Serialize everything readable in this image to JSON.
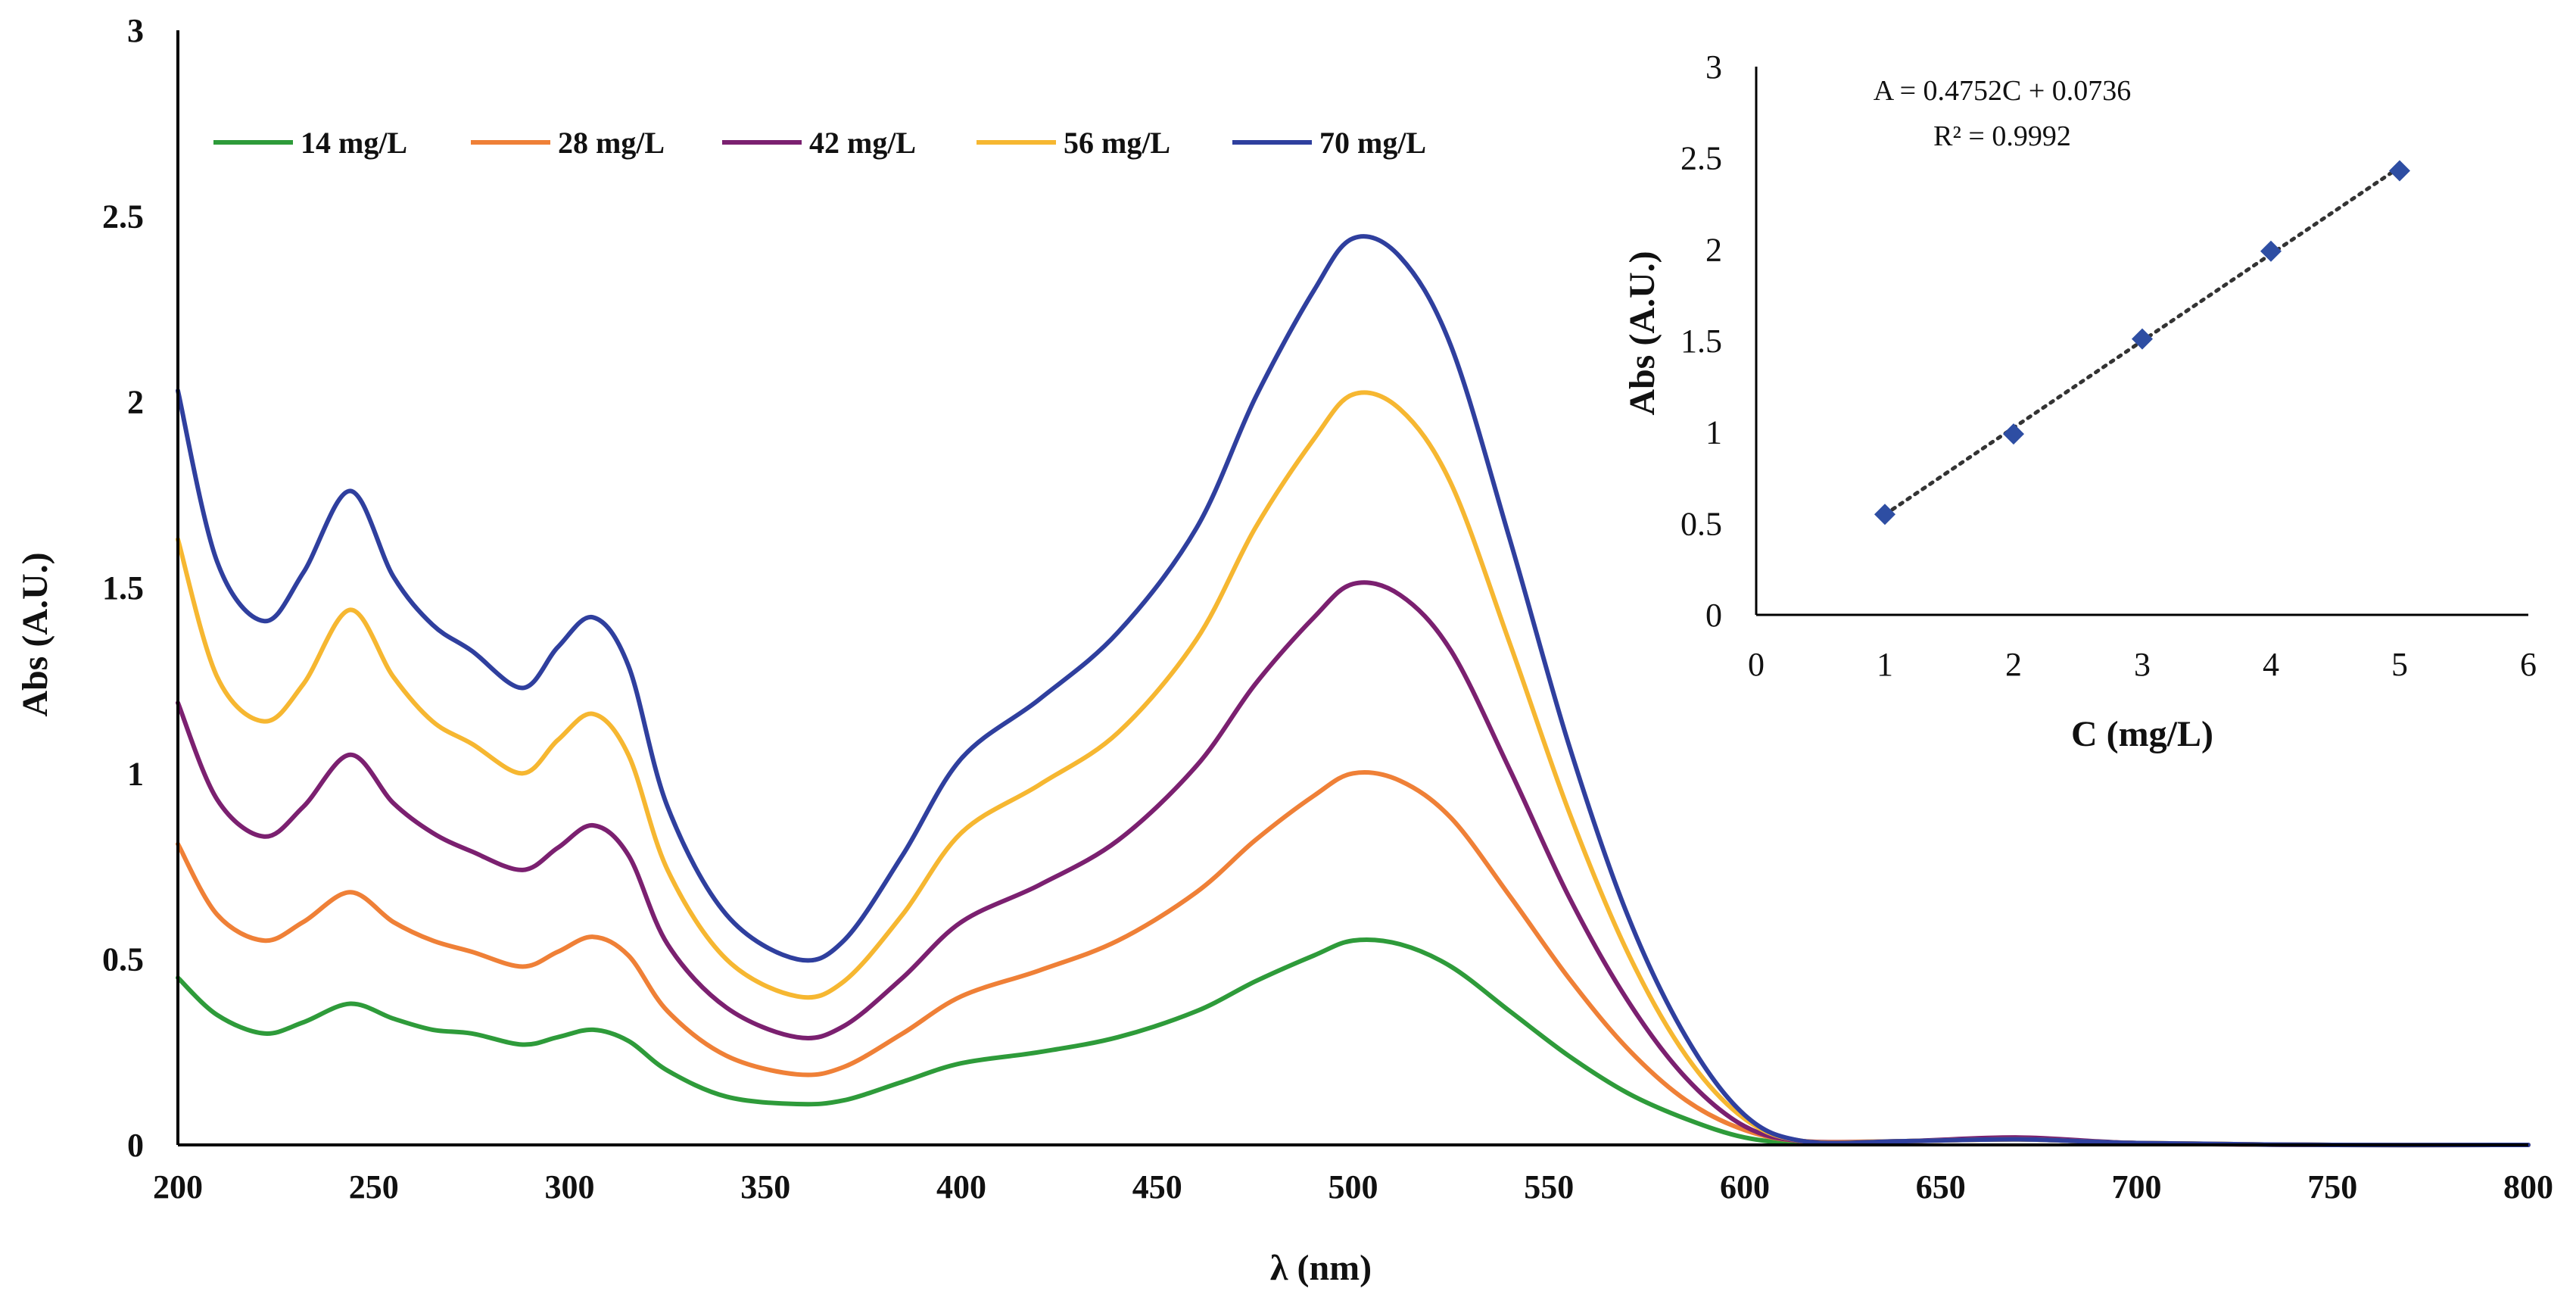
{
  "chart_data": [
    {
      "type": "line",
      "title": "",
      "xlabel": "λ (nm)",
      "ylabel": "Abs (A.U.)",
      "xlim": [
        200,
        800
      ],
      "ylim": [
        0,
        3
      ],
      "xticks": [
        200,
        250,
        300,
        350,
        400,
        450,
        500,
        550,
        600,
        650,
        700,
        750,
        800
      ],
      "yticks": [
        0,
        0.5,
        1,
        1.5,
        2,
        2.5,
        3
      ],
      "ytick_labels": [
        "0",
        "0.5",
        "1",
        "1.5",
        "2",
        "2.5",
        "3"
      ],
      "legend_position": "top-left",
      "x": [
        200,
        210,
        222,
        232,
        244,
        255,
        265,
        275,
        288,
        297,
        306,
        315,
        325,
        340,
        358,
        370,
        385,
        400,
        420,
        440,
        460,
        475,
        490,
        500,
        512,
        525,
        540,
        555,
        570,
        585,
        600,
        615,
        640,
        670,
        700,
        750,
        800
      ],
      "series": [
        {
          "name": "14 mg/L",
          "color": "#2e9b3a",
          "values": [
            0.45,
            0.35,
            0.3,
            0.33,
            0.38,
            0.34,
            0.31,
            0.3,
            0.27,
            0.29,
            0.31,
            0.28,
            0.2,
            0.13,
            0.11,
            0.12,
            0.17,
            0.22,
            0.25,
            0.29,
            0.36,
            0.44,
            0.51,
            0.55,
            0.54,
            0.48,
            0.36,
            0.24,
            0.14,
            0.07,
            0.02,
            0.005,
            0.01,
            0.015,
            0.005,
            0.0,
            0.0
          ]
        },
        {
          "name": "28 mg/L",
          "color": "#ef8037",
          "values": [
            0.81,
            0.62,
            0.55,
            0.6,
            0.68,
            0.6,
            0.55,
            0.52,
            0.48,
            0.52,
            0.56,
            0.51,
            0.36,
            0.24,
            0.19,
            0.21,
            0.3,
            0.4,
            0.47,
            0.55,
            0.68,
            0.82,
            0.94,
            1.0,
            0.98,
            0.88,
            0.67,
            0.45,
            0.26,
            0.12,
            0.04,
            0.01,
            0.01,
            0.015,
            0.005,
            0.0,
            0.0
          ]
        },
        {
          "name": "42 mg/L",
          "color": "#7b2070",
          "values": [
            1.19,
            0.93,
            0.83,
            0.91,
            1.05,
            0.92,
            0.84,
            0.79,
            0.74,
            0.8,
            0.86,
            0.78,
            0.54,
            0.37,
            0.29,
            0.32,
            0.45,
            0.6,
            0.7,
            0.82,
            1.02,
            1.24,
            1.42,
            1.51,
            1.48,
            1.33,
            1.01,
            0.67,
            0.39,
            0.18,
            0.05,
            0.01,
            0.01,
            0.02,
            0.005,
            0.0,
            0.0
          ]
        },
        {
          "name": "56 mg/L",
          "color": "#f6b731",
          "values": [
            1.63,
            1.26,
            1.14,
            1.24,
            1.44,
            1.26,
            1.14,
            1.08,
            1.0,
            1.09,
            1.16,
            1.05,
            0.74,
            0.5,
            0.4,
            0.44,
            0.62,
            0.84,
            0.97,
            1.11,
            1.36,
            1.66,
            1.9,
            2.02,
            1.98,
            1.78,
            1.35,
            0.9,
            0.52,
            0.24,
            0.07,
            0.01,
            0.01,
            0.015,
            0.005,
            0.0,
            0.0
          ]
        },
        {
          "name": "70 mg/L",
          "color": "#2f3f9e",
          "values": [
            2.03,
            1.57,
            1.41,
            1.54,
            1.76,
            1.53,
            1.4,
            1.33,
            1.23,
            1.34,
            1.42,
            1.29,
            0.91,
            0.62,
            0.5,
            0.55,
            0.78,
            1.04,
            1.2,
            1.38,
            1.66,
            2.01,
            2.3,
            2.44,
            2.39,
            2.15,
            1.63,
            1.08,
            0.62,
            0.29,
            0.08,
            0.01,
            0.01,
            0.015,
            0.005,
            0.0,
            0.0
          ]
        }
      ]
    },
    {
      "type": "scatter",
      "title": "",
      "xlabel": "C (mg/L)",
      "ylabel": "Abs (A.U.)",
      "xlim": [
        0,
        6
      ],
      "ylim": [
        0,
        3
      ],
      "xticks": [
        0,
        1,
        2,
        3,
        4,
        5,
        6
      ],
      "yticks": [
        0,
        0.5,
        1,
        1.5,
        2,
        2.5,
        3
      ],
      "ytick_labels": [
        "0",
        "0.5",
        "1",
        "1.5",
        "2",
        "2.5",
        "3"
      ],
      "x": [
        1,
        2,
        3,
        4,
        5
      ],
      "y": [
        0.55,
        0.99,
        1.51,
        1.99,
        2.43
      ],
      "marker_color": "#2e4ea3",
      "trendline": {
        "slope": 0.4752,
        "intercept": 0.0736,
        "style": "dotted",
        "color": "#333333"
      },
      "annotations": [
        "A = 0.4752C + 0.0736",
        "R² = 0.9992"
      ]
    }
  ]
}
